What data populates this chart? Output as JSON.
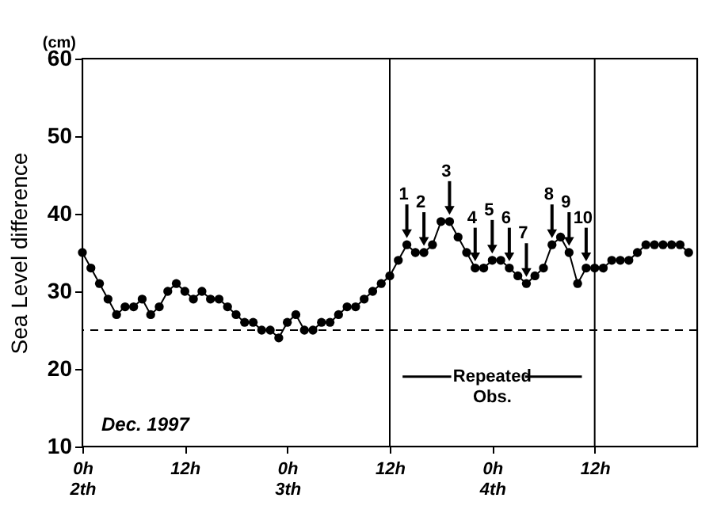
{
  "chart_data": {
    "type": "line",
    "ylabel": "Sea Level difference",
    "x": [
      "1997-12-02T00:00",
      "1997-12-02T01:00",
      "1997-12-02T02:00",
      "1997-12-02T03:00",
      "1997-12-02T04:00",
      "1997-12-02T05:00",
      "1997-12-02T06:00",
      "1997-12-02T07:00",
      "1997-12-02T08:00",
      "1997-12-02T09:00",
      "1997-12-02T10:00",
      "1997-12-02T11:00",
      "1997-12-02T12:00",
      "1997-12-02T13:00",
      "1997-12-02T14:00",
      "1997-12-02T15:00",
      "1997-12-02T16:00",
      "1997-12-02T17:00",
      "1997-12-02T18:00",
      "1997-12-02T19:00",
      "1997-12-02T20:00",
      "1997-12-02T21:00",
      "1997-12-02T22:00",
      "1997-12-02T23:00",
      "1997-12-03T00:00",
      "1997-12-03T01:00",
      "1997-12-03T02:00",
      "1997-12-03T03:00",
      "1997-12-03T04:00",
      "1997-12-03T05:00",
      "1997-12-03T06:00",
      "1997-12-03T07:00",
      "1997-12-03T08:00",
      "1997-12-03T09:00",
      "1997-12-03T10:00",
      "1997-12-03T11:00",
      "1997-12-03T12:00",
      "1997-12-03T13:00",
      "1997-12-03T14:00",
      "1997-12-03T15:00",
      "1997-12-03T16:00",
      "1997-12-03T17:00",
      "1997-12-03T18:00",
      "1997-12-03T19:00",
      "1997-12-03T20:00",
      "1997-12-03T21:00",
      "1997-12-03T22:00",
      "1997-12-03T23:00",
      "1997-12-04T00:00",
      "1997-12-04T01:00",
      "1997-12-04T02:00",
      "1997-12-04T03:00",
      "1997-12-04T04:00",
      "1997-12-04T05:00",
      "1997-12-04T06:00",
      "1997-12-04T07:00",
      "1997-12-04T08:00",
      "1997-12-04T09:00",
      "1997-12-04T10:00",
      "1997-12-04T11:00",
      "1997-12-04T12:00",
      "1997-12-04T13:00",
      "1997-12-04T14:00",
      "1997-12-04T15:00",
      "1997-12-04T16:00",
      "1997-12-04T17:00",
      "1997-12-04T18:00",
      "1997-12-04T19:00",
      "1997-12-04T20:00",
      "1997-12-04T21:00",
      "1997-12-04T22:00",
      "1997-12-04T23:00"
    ],
    "series": [
      {
        "color": "#000000",
        "values": [
          35,
          33,
          31,
          29,
          27,
          28,
          28,
          29,
          27,
          28,
          30,
          31,
          30,
          29,
          30,
          29,
          29,
          28,
          27,
          26,
          26,
          25,
          25,
          24,
          26,
          27,
          25,
          25,
          26,
          26,
          27,
          28,
          28,
          29,
          30,
          31,
          32,
          34,
          36,
          35,
          35,
          36,
          39,
          39,
          37,
          35,
          33,
          33,
          34,
          34,
          33,
          32,
          31,
          32,
          33,
          36,
          37,
          35,
          31,
          33,
          33,
          33,
          34,
          34,
          34,
          35,
          36,
          36,
          36,
          36,
          36,
          35
        ]
      }
    ],
    "xlim": [
      "1997-12-02T00:00",
      "1997-12-05T00:00"
    ],
    "xticks": [
      {
        "value": "1997-12-02T00:00",
        "label": "0h\n2th"
      },
      {
        "value": "1997-12-02T12:00",
        "label": "12h"
      },
      {
        "value": "1997-12-03T00:00",
        "label": "0h\n3th"
      },
      {
        "value": "1997-12-03T12:00",
        "label": "12h"
      },
      {
        "value": "1997-12-04T00:00",
        "label": "0h\n4th"
      },
      {
        "value": "1997-12-04T12:00",
        "label": "12h"
      }
    ],
    "ylim": [
      10,
      60
    ],
    "yticks": [
      10,
      20,
      30,
      40,
      50,
      60
    ],
    "grid": false,
    "marker": "circle",
    "line_style": "solid",
    "ref_lines": [
      {
        "axis": "y",
        "value": 25,
        "line_style": "dashed",
        "color": "#000000"
      },
      {
        "axis": "x",
        "value": "1997-12-03T12:00",
        "line_style": "solid",
        "color": "#000000"
      },
      {
        "axis": "x",
        "value": "1997-12-04T12:00",
        "line_style": "solid",
        "color": "#000000"
      }
    ],
    "annotations": [
      "(cm)",
      "Dec. 1997",
      "Repeated Obs.",
      {
        "text": "1",
        "x": "1997-12-03T14:00",
        "y": 36
      },
      {
        "text": "2",
        "x": "1997-12-03T16:00",
        "y": 35
      },
      {
        "text": "3",
        "x": "1997-12-03T19:00",
        "y": 39
      },
      {
        "text": "4",
        "x": "1997-12-03T22:00",
        "y": 33
      },
      {
        "text": "5",
        "x": "1997-12-04T00:00",
        "y": 34
      },
      {
        "text": "6",
        "x": "1997-12-04T02:00",
        "y": 33
      },
      {
        "text": "7",
        "x": "1997-12-04T04:00",
        "y": 31
      },
      {
        "text": "8",
        "x": "1997-12-04T07:00",
        "y": 36
      },
      {
        "text": "9",
        "x": "1997-12-04T09:00",
        "y": 35
      },
      {
        "text": "10",
        "x": "1997-12-04T11:00",
        "y": 33
      }
    ]
  }
}
